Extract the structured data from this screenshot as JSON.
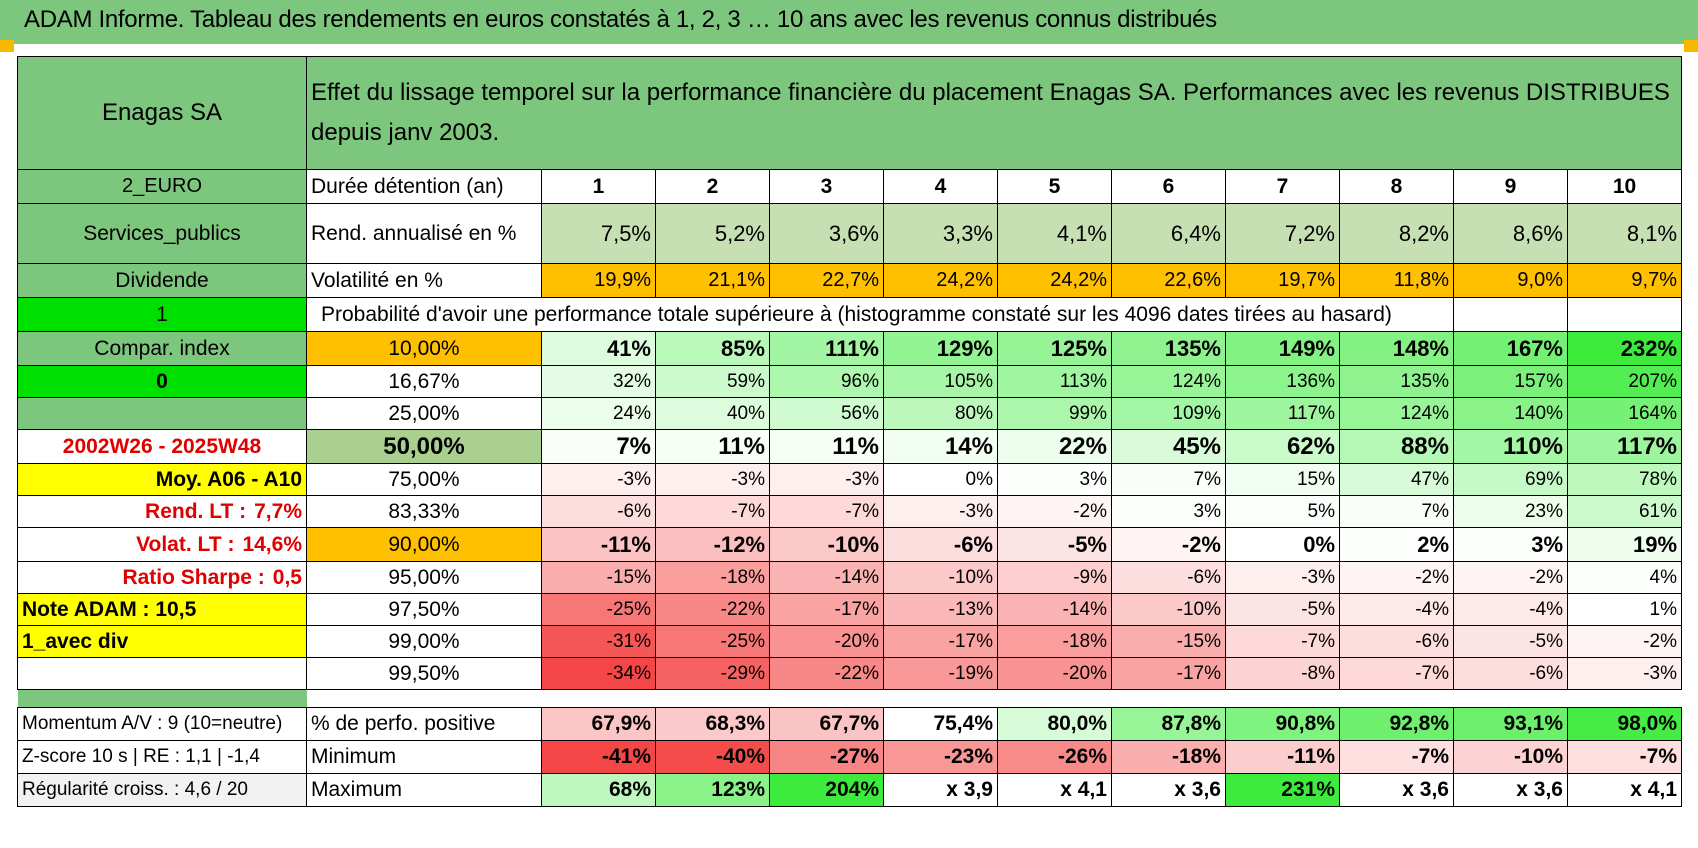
{
  "report": {
    "title": "ADAM Informe. Tableau des rendements en euros constatés à 1, 2, 3 … 10 ans avec les revenus connus distribués"
  },
  "header": {
    "name": "Enagas SA",
    "description": "Effet du lissage temporel sur la performance financière du placement Enagas SA. Performances avec les revenus DISTRIBUES depuis janv 2003."
  },
  "side": {
    "currency": "2_EURO",
    "sector": "Services_publics",
    "income_type": "Dividende",
    "flag1": "1",
    "compar_index": "Compar. index",
    "flag0": "0",
    "period": "2002W26 - 2025W48",
    "moy": "Moy. A06 - A10",
    "rend_lt_label": "Rend. LT :",
    "rend_lt_value": "7,7%",
    "volat_lt_label": "Volat. LT :",
    "volat_lt_value": "14,6%",
    "sharpe_label": "Ratio Sharpe :",
    "sharpe_value": "0,5",
    "note_adam": "Note ADAM : 10,5",
    "avec_div": "1_avec div"
  },
  "durations": {
    "label": "Durée détention (an)",
    "values": [
      "1",
      "2",
      "3",
      "4",
      "5",
      "6",
      "7",
      "8",
      "9",
      "10"
    ]
  },
  "rend": {
    "label": "Rend. annualisé en %",
    "values": [
      "7,5%",
      "5,2%",
      "3,6%",
      "3,3%",
      "4,1%",
      "6,4%",
      "7,2%",
      "8,2%",
      "8,6%",
      "8,1%"
    ]
  },
  "vol": {
    "label": "Volatilité en %",
    "values": [
      "19,9%",
      "21,1%",
      "22,7%",
      "24,2%",
      "24,2%",
      "22,6%",
      "19,7%",
      "11,8%",
      "9,0%",
      "9,7%"
    ]
  },
  "prob_title": "Probabilité d'avoir une performance totale supérieure à (histogramme constaté sur les 4096 dates tirées au hasard)",
  "quantiles": [
    {
      "p": "10,00%",
      "values": [
        "41%",
        "85%",
        "111%",
        "129%",
        "125%",
        "135%",
        "149%",
        "148%",
        "167%",
        "232%"
      ]
    },
    {
      "p": "16,67%",
      "values": [
        "32%",
        "59%",
        "96%",
        "105%",
        "113%",
        "124%",
        "136%",
        "135%",
        "157%",
        "207%"
      ]
    },
    {
      "p": "25,00%",
      "values": [
        "24%",
        "40%",
        "56%",
        "80%",
        "99%",
        "109%",
        "117%",
        "124%",
        "140%",
        "164%"
      ]
    },
    {
      "p": "50,00%",
      "values": [
        "7%",
        "11%",
        "11%",
        "14%",
        "22%",
        "45%",
        "62%",
        "88%",
        "110%",
        "117%"
      ]
    },
    {
      "p": "75,00%",
      "values": [
        "-3%",
        "-3%",
        "-3%",
        "0%",
        "3%",
        "7%",
        "15%",
        "47%",
        "69%",
        "78%"
      ]
    },
    {
      "p": "83,33%",
      "values": [
        "-6%",
        "-7%",
        "-7%",
        "-3%",
        "-2%",
        "3%",
        "5%",
        "7%",
        "23%",
        "61%"
      ]
    },
    {
      "p": "90,00%",
      "values": [
        "-11%",
        "-12%",
        "-10%",
        "-6%",
        "-5%",
        "-2%",
        "0%",
        "2%",
        "3%",
        "19%"
      ]
    },
    {
      "p": "95,00%",
      "values": [
        "-15%",
        "-18%",
        "-14%",
        "-10%",
        "-9%",
        "-6%",
        "-3%",
        "-2%",
        "-2%",
        "4%"
      ]
    },
    {
      "p": "97,50%",
      "values": [
        "-25%",
        "-22%",
        "-17%",
        "-13%",
        "-14%",
        "-10%",
        "-5%",
        "-4%",
        "-4%",
        "1%"
      ]
    },
    {
      "p": "99,00%",
      "values": [
        "-31%",
        "-25%",
        "-20%",
        "-17%",
        "-18%",
        "-15%",
        "-7%",
        "-6%",
        "-5%",
        "-2%"
      ]
    },
    {
      "p": "99,50%",
      "values": [
        "-34%",
        "-29%",
        "-22%",
        "-19%",
        "-20%",
        "-17%",
        "-8%",
        "-7%",
        "-6%",
        "-3%"
      ]
    }
  ],
  "bottom": [
    {
      "side": "Momentum A/V : 9 (10=neutre)",
      "label": "% de perfo. positive",
      "values": [
        "67,9%",
        "68,3%",
        "67,7%",
        "75,4%",
        "80,0%",
        "87,8%",
        "90,8%",
        "92,8%",
        "93,1%",
        "98,0%"
      ]
    },
    {
      "side": "Z-score 10 s | RE : 1,1 | -1,4",
      "label": "Minimum",
      "values": [
        "-41%",
        "-40%",
        "-27%",
        "-23%",
        "-26%",
        "-18%",
        "-11%",
        "-7%",
        "-10%",
        "-7%"
      ]
    },
    {
      "side": "Régularité croiss. : 4,6 / 20",
      "label": "Maximum",
      "values": [
        "68%",
        "123%",
        "204%",
        "x 3,9",
        "x 4,1",
        "x 3,6",
        "231%",
        "x 3,6",
        "x 3,6",
        "x 4,1"
      ]
    }
  ],
  "colors": {
    "header_green": "#7dc67d",
    "rend_green": "#c6e0b4",
    "vol_orange": "#ffc000",
    "median_green": "#a9d08e",
    "bright_green": "#00e000",
    "yellow": "#ffff00",
    "red_text": "#e00000"
  }
}
